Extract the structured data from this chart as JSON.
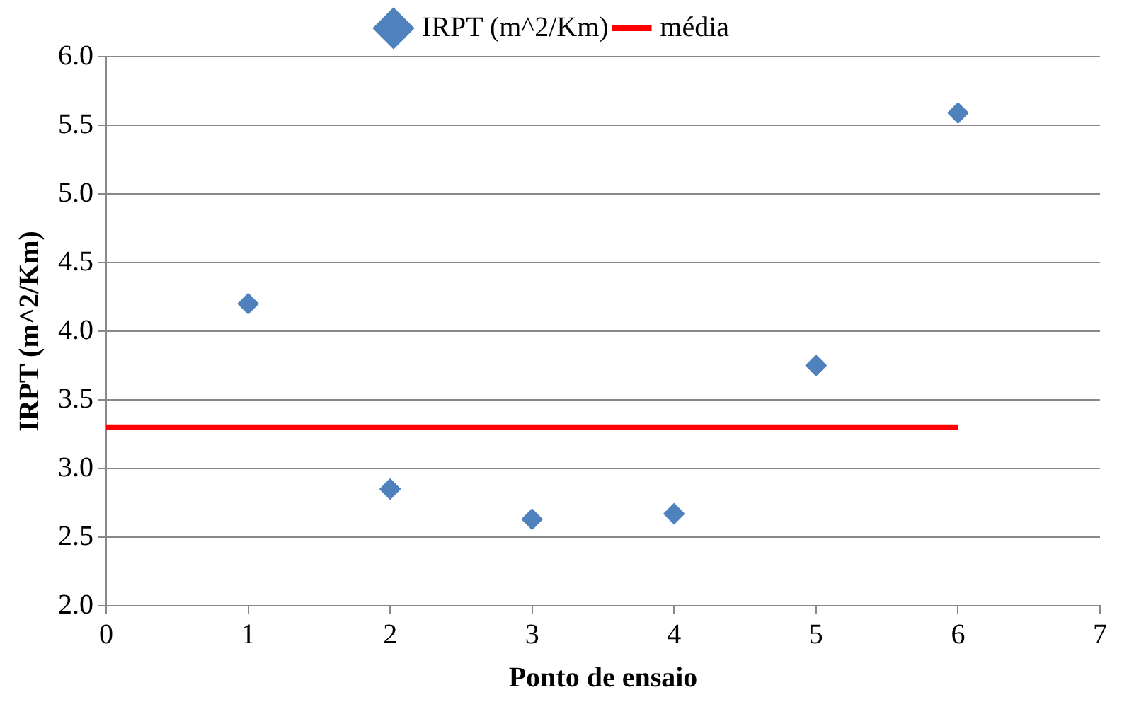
{
  "chart_data": {
    "type": "scatter",
    "xlabel": "Ponto de ensaio",
    "ylabel": "IRPT (m^2/Km)",
    "series": [
      {
        "name": "IRPT (m^2/Km)",
        "type": "scatter",
        "color": "#4f81bd",
        "marker": "diamond",
        "x": [
          1,
          2,
          3,
          4,
          5,
          6
        ],
        "values": [
          4.2,
          2.85,
          2.63,
          2.67,
          3.75,
          5.59
        ]
      },
      {
        "name": "média",
        "type": "line",
        "color": "#ff0000",
        "marker": "none",
        "x": [
          0,
          6
        ],
        "values": [
          3.3,
          3.3
        ]
      }
    ],
    "xlim": [
      0,
      7
    ],
    "xticks": [
      0,
      1,
      2,
      3,
      4,
      5,
      6,
      7
    ],
    "ylim": [
      2,
      6
    ],
    "yticks": [
      {
        "value": 2,
        "label": "2.0"
      },
      {
        "value": 2.5,
        "label": "2.5"
      },
      {
        "value": 3,
        "label": "3.0"
      },
      {
        "value": 3.5,
        "label": "3.5"
      },
      {
        "value": 4,
        "label": "4.0"
      },
      {
        "value": 4.5,
        "label": "4.5"
      },
      {
        "value": 5,
        "label": "5.0"
      },
      {
        "value": 5.5,
        "label": "5.5"
      },
      {
        "value": 6,
        "label": "6.0"
      }
    ],
    "grid": "y",
    "legend": "top"
  }
}
